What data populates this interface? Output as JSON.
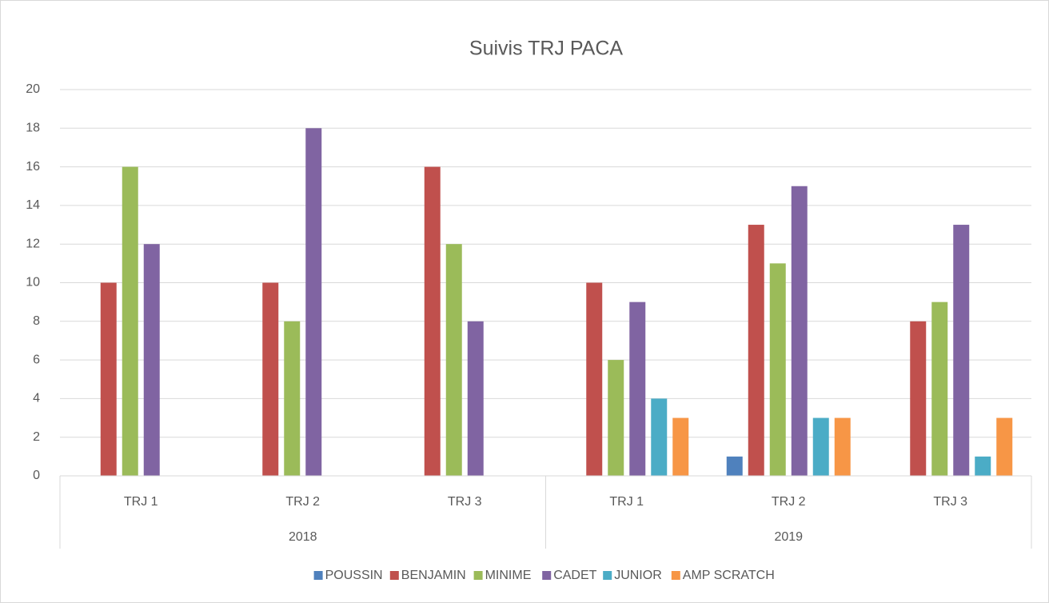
{
  "chart_data": {
    "type": "bar",
    "title": "Suivis TRJ PACA",
    "groups": [
      {
        "name": "2018",
        "categories": [
          "TRJ 1",
          "TRJ 2",
          "TRJ 3"
        ]
      },
      {
        "name": "2019",
        "categories": [
          "TRJ 1",
          "TRJ 2",
          "TRJ 3"
        ]
      }
    ],
    "series": [
      {
        "name": "POUSSIN",
        "color": "#4f81bd",
        "values": [
          null,
          null,
          null,
          null,
          1,
          null
        ]
      },
      {
        "name": "BENJAMIN",
        "color": "#c0504d",
        "values": [
          10,
          10,
          16,
          10,
          13,
          8
        ]
      },
      {
        "name": "MINIME",
        "color": "#9bbb59",
        "values": [
          16,
          8,
          12,
          6,
          11,
          9
        ]
      },
      {
        "name": "CADET",
        "color": "#8064a2",
        "values": [
          12,
          18,
          8,
          9,
          15,
          13
        ]
      },
      {
        "name": "JUNIOR",
        "color": "#4bacc6",
        "values": [
          null,
          null,
          null,
          4,
          3,
          1
        ]
      },
      {
        "name": "AMP SCRATCH",
        "color": "#f79646",
        "values": [
          null,
          null,
          null,
          3,
          3,
          3
        ]
      }
    ],
    "ylim": [
      0,
      20
    ],
    "yticks": [
      0,
      2,
      4,
      6,
      8,
      10,
      12,
      14,
      16,
      18,
      20
    ],
    "grid": true,
    "legend": "bottom"
  }
}
